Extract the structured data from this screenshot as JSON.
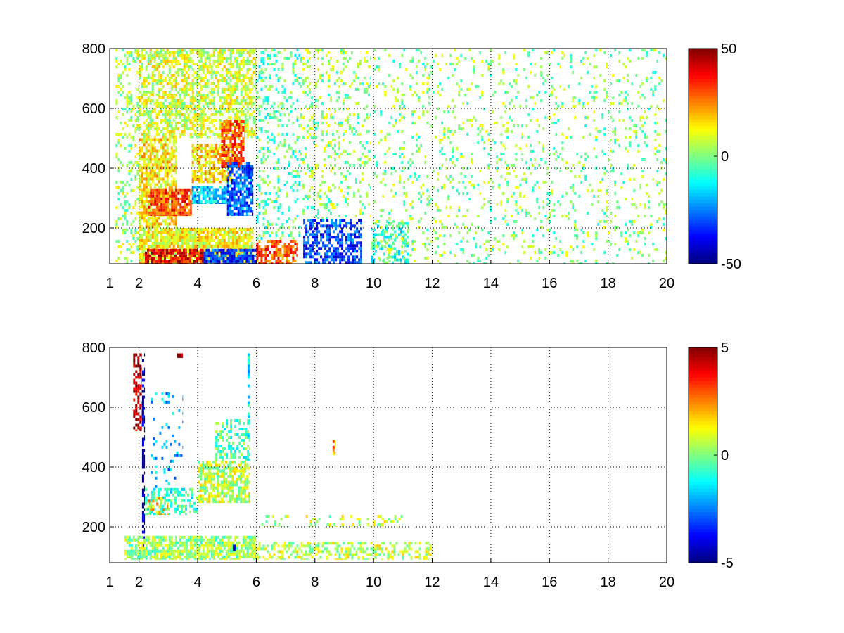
{
  "chart_data": [
    {
      "type": "heatmap",
      "title": "",
      "xlabel": "",
      "ylabel": "",
      "xlim": [
        1,
        20
      ],
      "ylim": [
        80,
        800
      ],
      "x_ticks": [
        "1",
        "2",
        "4",
        "6",
        "8",
        "10",
        "12",
        "14",
        "16",
        "18",
        "20"
      ],
      "y_ticks": [
        "200",
        "400",
        "600",
        "800"
      ],
      "grid": true,
      "grid_x": [
        2,
        4,
        6,
        8,
        10,
        12,
        14,
        16,
        18
      ],
      "grid_y": [
        200,
        400,
        600
      ],
      "colorbar": {
        "min": -50,
        "max": 50,
        "ticks": [
          "50",
          "0",
          "-50"
        ],
        "colormap": "jet"
      },
      "value_range": [
        -50,
        50
      ],
      "regions": [
        {
          "x": [
            1.2,
            2.0
          ],
          "y": [
            80,
            800
          ],
          "value": 4,
          "density": 0.25
        },
        {
          "x": [
            2.0,
            6.0
          ],
          "y": [
            500,
            800
          ],
          "value": 8,
          "density": 0.6
        },
        {
          "x": [
            2.0,
            3.3
          ],
          "y": [
            200,
            500
          ],
          "value": 14,
          "density": 0.75
        },
        {
          "x": [
            2.3,
            3.8
          ],
          "y": [
            240,
            330
          ],
          "value": 32,
          "density": 0.8
        },
        {
          "x": [
            3.8,
            5.0
          ],
          "y": [
            280,
            340
          ],
          "value": -18,
          "density": 0.8
        },
        {
          "x": [
            3.8,
            5.2
          ],
          "y": [
            350,
            480
          ],
          "value": 16,
          "density": 0.75
        },
        {
          "x": [
            4.8,
            5.6
          ],
          "y": [
            400,
            560
          ],
          "value": 30,
          "density": 0.7
        },
        {
          "x": [
            5.0,
            5.9
          ],
          "y": [
            240,
            420
          ],
          "value": -28,
          "density": 0.8
        },
        {
          "x": [
            2.0,
            5.9
          ],
          "y": [
            80,
            200
          ],
          "value": 12,
          "density": 0.85
        },
        {
          "x": [
            2.2,
            4.2
          ],
          "y": [
            80,
            130
          ],
          "value": 38,
          "density": 0.85
        },
        {
          "x": [
            4.2,
            6.0
          ],
          "y": [
            80,
            130
          ],
          "value": -32,
          "density": 0.8
        },
        {
          "x": [
            6.0,
            7.4
          ],
          "y": [
            80,
            160
          ],
          "value": 30,
          "density": 0.6
        },
        {
          "x": [
            6.0,
            7.5
          ],
          "y": [
            160,
            800
          ],
          "value": -4,
          "density": 0.25
        },
        {
          "x": [
            7.6,
            9.6
          ],
          "y": [
            80,
            230
          ],
          "value": -32,
          "density": 0.6
        },
        {
          "x": [
            7.5,
            9.9
          ],
          "y": [
            230,
            800
          ],
          "value": 2,
          "density": 0.2
        },
        {
          "x": [
            9.9,
            11.2
          ],
          "y": [
            80,
            220
          ],
          "value": -8,
          "density": 0.45
        },
        {
          "x": [
            10.0,
            20.0
          ],
          "y": [
            80,
            800
          ],
          "value": 1,
          "density": 0.12
        }
      ]
    },
    {
      "type": "heatmap",
      "title": "",
      "xlabel": "",
      "ylabel": "",
      "xlim": [
        1,
        20
      ],
      "ylim": [
        80,
        800
      ],
      "x_ticks": [
        "1",
        "2",
        "4",
        "6",
        "8",
        "10",
        "12",
        "14",
        "16",
        "18",
        "20"
      ],
      "y_ticks": [
        "200",
        "400",
        "600",
        "800"
      ],
      "grid": true,
      "grid_x": [
        2,
        4,
        6,
        8,
        10,
        12,
        14,
        16,
        18
      ],
      "grid_y": [
        200,
        400,
        600
      ],
      "colorbar": {
        "min": -5,
        "max": 5,
        "ticks": [
          "5",
          "0",
          "-5"
        ],
        "colormap": "jet"
      },
      "value_range": [
        -5,
        5
      ],
      "regions": [
        {
          "x": [
            1.8,
            2.1
          ],
          "y": [
            520,
            780
          ],
          "value": 4.5,
          "density": 0.6
        },
        {
          "x": [
            2.1,
            2.2
          ],
          "y": [
            120,
            780
          ],
          "value": -4.5,
          "density": 0.6
        },
        {
          "x": [
            2.2,
            4.0
          ],
          "y": [
            240,
            330
          ],
          "value": -0.8,
          "density": 0.55
        },
        {
          "x": [
            2.3,
            3.0
          ],
          "y": [
            240,
            300
          ],
          "value": 1.8,
          "density": 0.4
        },
        {
          "x": [
            4.0,
            5.8
          ],
          "y": [
            280,
            420
          ],
          "value": 0.6,
          "density": 0.7
        },
        {
          "x": [
            4.6,
            5.8
          ],
          "y": [
            420,
            560
          ],
          "value": -0.5,
          "density": 0.45
        },
        {
          "x": [
            2.4,
            3.5
          ],
          "y": [
            330,
            650
          ],
          "value": -2.0,
          "density": 0.1
        },
        {
          "x": [
            1.5,
            6.0
          ],
          "y": [
            90,
            170
          ],
          "value": 0.3,
          "density": 0.75
        },
        {
          "x": [
            6.0,
            12.0
          ],
          "y": [
            90,
            150
          ],
          "value": 0.6,
          "density": 0.45
        },
        {
          "x": [
            6.1,
            11.0
          ],
          "y": [
            200,
            240
          ],
          "value": 0.6,
          "density": 0.2
        },
        {
          "x": [
            5.7,
            5.8
          ],
          "y": [
            500,
            780
          ],
          "value": -1.5,
          "density": 0.5
        },
        {
          "x": [
            8.6,
            8.7
          ],
          "y": [
            440,
            490
          ],
          "value": 2.5,
          "density": 0.8
        },
        {
          "x": [
            3.3,
            3.5
          ],
          "y": [
            765,
            780
          ],
          "value": 4.8,
          "density": 1.0
        },
        {
          "x": [
            5.2,
            5.3
          ],
          "y": [
            120,
            140
          ],
          "value": -4.8,
          "density": 1.0
        }
      ]
    }
  ]
}
